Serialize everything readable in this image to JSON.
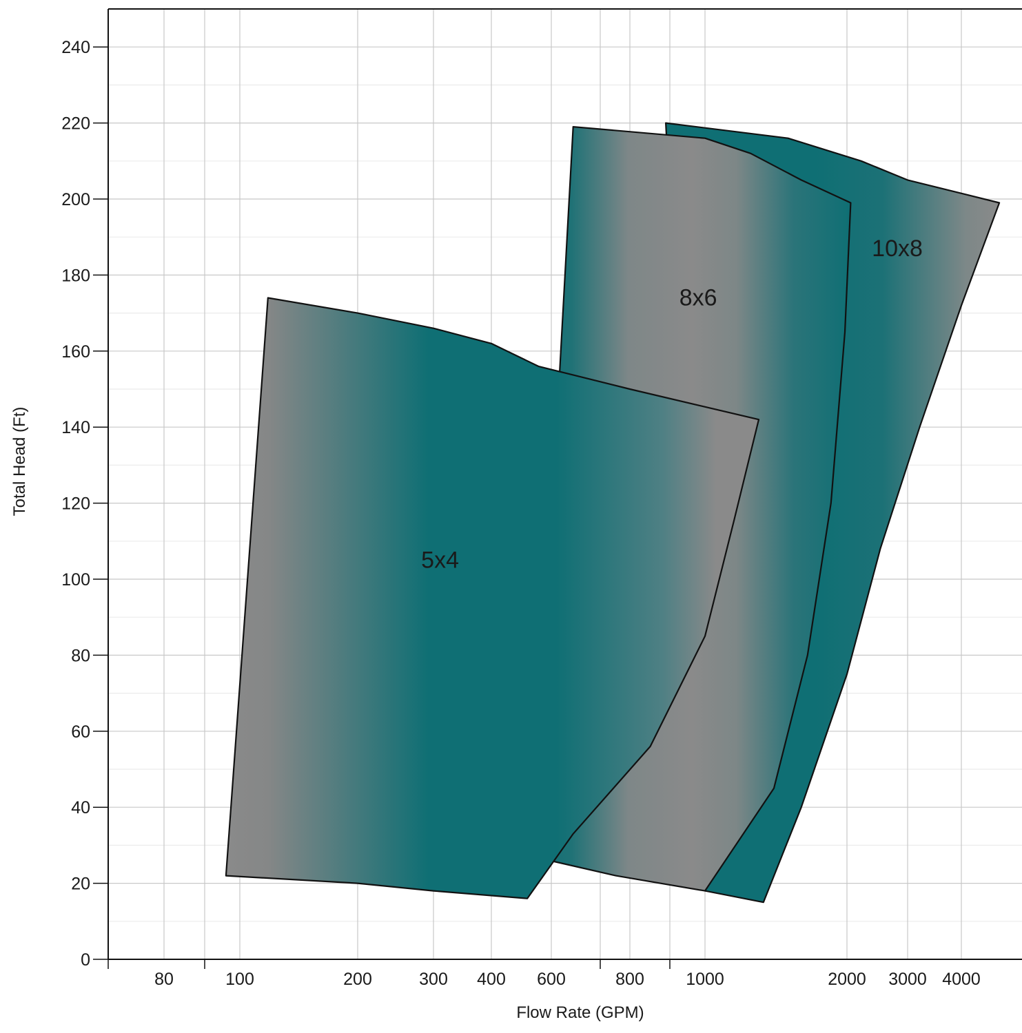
{
  "chart_data": {
    "type": "area",
    "title": "",
    "xlabel": "Flow Rate (GPM)",
    "ylabel": "Total Head (Ft)",
    "ylim": [
      0,
      250
    ],
    "x_tick_labels": [
      "80",
      "100",
      "200",
      "300",
      "400",
      "600",
      "800",
      "1000",
      "2000",
      "3000",
      "4000"
    ],
    "y_ticks": [
      0,
      20,
      40,
      60,
      80,
      100,
      120,
      140,
      160,
      180,
      200,
      220,
      240
    ],
    "grid": true,
    "colors": {
      "teal": "#0f6f74",
      "gray": "#8a8a8a"
    },
    "series": [
      {
        "name": "10x8",
        "label_at": {
          "x": 2800,
          "y": 185
        },
        "outline": [
          {
            "x": 890,
            "y": 220
          },
          {
            "x": 1500,
            "y": 216
          },
          {
            "x": 2200,
            "y": 210
          },
          {
            "x": 3000,
            "y": 205
          },
          {
            "x": 4600,
            "y": 199
          },
          {
            "x": 4000,
            "y": 172
          },
          {
            "x": 3200,
            "y": 140
          },
          {
            "x": 2500,
            "y": 108
          },
          {
            "x": 2000,
            "y": 75
          },
          {
            "x": 1600,
            "y": 40
          },
          {
            "x": 1330,
            "y": 15
          },
          {
            "x": 1000,
            "y": 18
          }
        ]
      },
      {
        "name": "8x6",
        "label_at": {
          "x": 980,
          "y": 172
        },
        "outline": [
          {
            "x": 650,
            "y": 219
          },
          {
            "x": 1000,
            "y": 216
          },
          {
            "x": 1250,
            "y": 212
          },
          {
            "x": 1600,
            "y": 205
          },
          {
            "x": 2050,
            "y": 199
          },
          {
            "x": 1980,
            "y": 165
          },
          {
            "x": 1850,
            "y": 120
          },
          {
            "x": 1650,
            "y": 80
          },
          {
            "x": 1400,
            "y": 45
          },
          {
            "x": 1000,
            "y": 18
          },
          {
            "x": 760,
            "y": 22
          },
          {
            "x": 530,
            "y": 27
          }
        ]
      },
      {
        "name": "5x4",
        "label_at": {
          "x": 310,
          "y": 103
        },
        "outline": [
          {
            "x": 118,
            "y": 174
          },
          {
            "x": 200,
            "y": 170
          },
          {
            "x": 300,
            "y": 166
          },
          {
            "x": 400,
            "y": 162
          },
          {
            "x": 550,
            "y": 156
          },
          {
            "x": 800,
            "y": 150
          },
          {
            "x": 1300,
            "y": 142
          },
          {
            "x": 1150,
            "y": 115
          },
          {
            "x": 1000,
            "y": 85
          },
          {
            "x": 850,
            "y": 56
          },
          {
            "x": 650,
            "y": 33
          },
          {
            "x": 510,
            "y": 16
          },
          {
            "x": 300,
            "y": 18
          },
          {
            "x": 200,
            "y": 20
          },
          {
            "x": 96,
            "y": 22
          }
        ]
      }
    ]
  }
}
